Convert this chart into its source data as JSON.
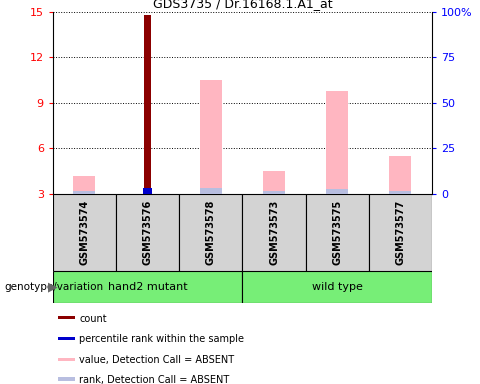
{
  "title": "GDS3735 / Dr.16168.1.A1_at",
  "samples": [
    "GSM573574",
    "GSM573576",
    "GSM573578",
    "GSM573573",
    "GSM573575",
    "GSM573577"
  ],
  "count_values": [
    0,
    14.8,
    0,
    0,
    0,
    0
  ],
  "percentile_values": [
    0,
    3.4,
    0,
    0,
    0,
    0
  ],
  "absent_value_bars": [
    4.2,
    0,
    10.5,
    4.5,
    9.8,
    5.5
  ],
  "absent_rank_bars": [
    3.2,
    0,
    3.4,
    3.2,
    3.3,
    3.2
  ],
  "ylim_left": [
    3,
    15
  ],
  "ylim_right": [
    0,
    100
  ],
  "yticks_left": [
    3,
    6,
    9,
    12,
    15
  ],
  "yticks_right": [
    0,
    25,
    50,
    75,
    100
  ],
  "ytick_labels_left": [
    "3",
    "6",
    "9",
    "12",
    "15"
  ],
  "ytick_labels_right": [
    "0",
    "25",
    "50",
    "75",
    "100%"
  ],
  "color_count": "#8B0000",
  "color_percentile": "#0000CC",
  "color_absent_value": "#FFB6C1",
  "color_absent_rank": "#B8BEE0",
  "group_box_color": "#d3d3d3",
  "group1_label": "hand2 mutant",
  "group2_label": "wild type",
  "group_color": "#77EE77",
  "genotype_label": "genotype/variation",
  "legend_items": [
    {
      "label": "count",
      "color": "#8B0000"
    },
    {
      "label": "percentile rank within the sample",
      "color": "#0000CC"
    },
    {
      "label": "value, Detection Call = ABSENT",
      "color": "#FFB6C1"
    },
    {
      "label": "rank, Detection Call = ABSENT",
      "color": "#B8BEE0"
    }
  ]
}
